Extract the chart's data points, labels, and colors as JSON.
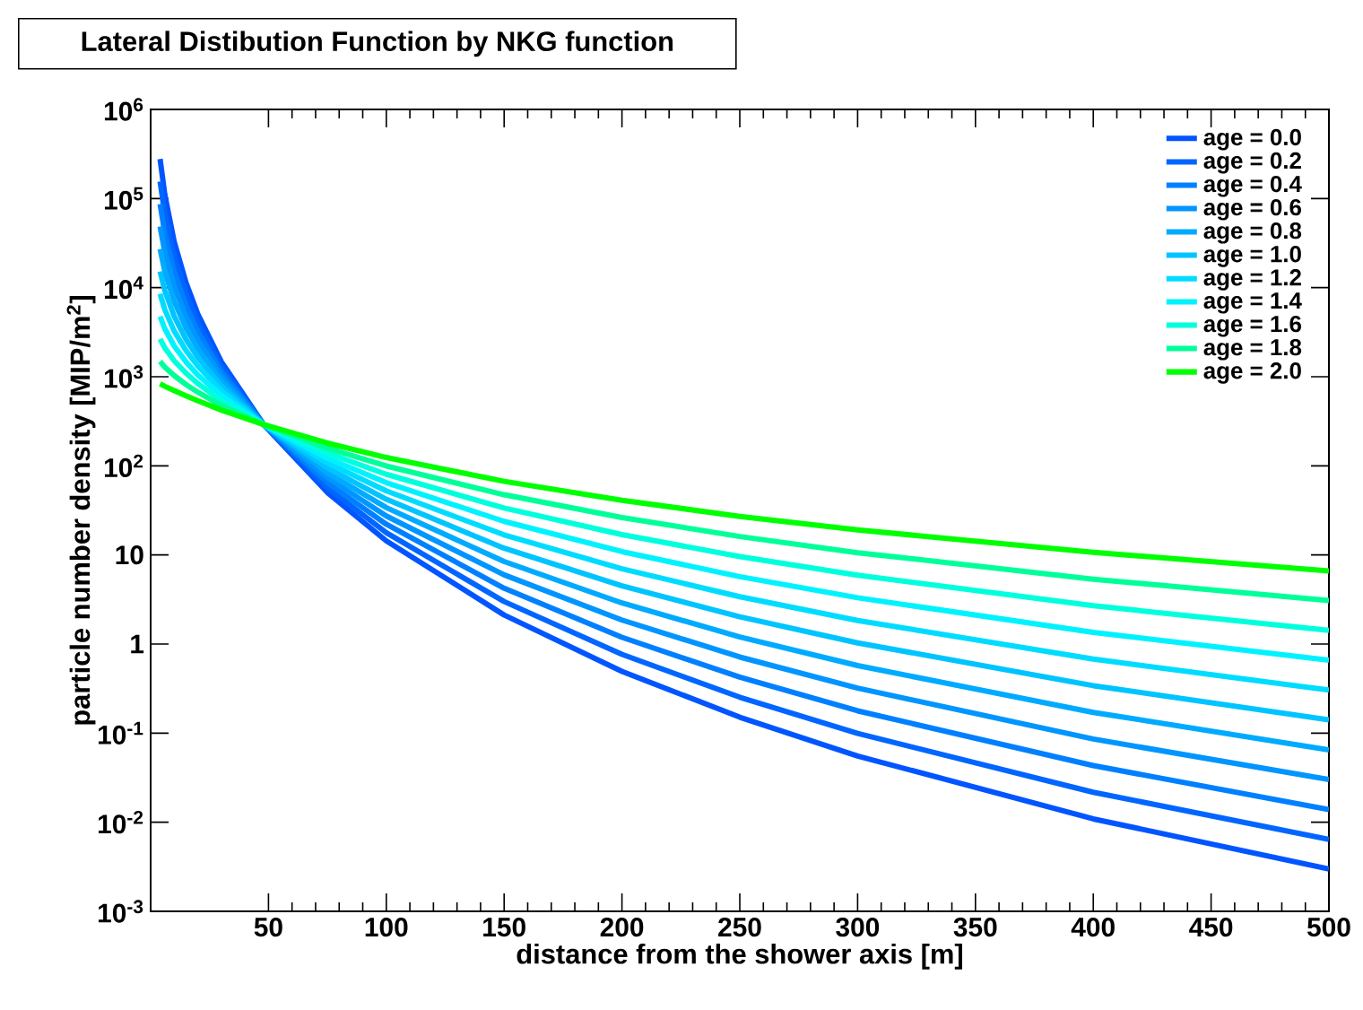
{
  "chart_data": {
    "type": "line",
    "title": "Lateral Distibution Function by NKG function",
    "xlabel": "distance from the shower axis [m]",
    "ylabel": "particle number density [MIP/m$^{2}$]",
    "x": [
      4,
      6,
      10,
      15,
      20,
      30,
      48,
      75,
      100,
      150,
      200,
      250,
      300,
      400,
      500
    ],
    "series": [
      {
        "name": "age = 0.0",
        "color": "#0055ff",
        "values": [
          278000,
          111000,
          32600,
          11400,
          5070,
          1470,
          290,
          50.2,
          14.4,
          2.12,
          0.493,
          0.151,
          0.0554,
          0.0109,
          0.00298
        ]
      },
      {
        "name": "age = 0.2",
        "color": "#0066ff",
        "values": [
          155000,
          67700,
          22200,
          8480,
          4050,
          1300,
          290,
          57.0,
          17.8,
          3.0,
          0.766,
          0.253,
          0.0994,
          0.0217,
          0.00643
        ]
      },
      {
        "name": "age = 0.4",
        "color": "#0080ff",
        "values": [
          86900,
          41200,
          15100,
          6330,
          3230,
          1140,
          290,
          64.7,
          22.1,
          4.23,
          1.19,
          0.425,
          0.178,
          0.0432,
          0.0139
        ]
      },
      {
        "name": "age = 0.6",
        "color": "#0095ff",
        "values": [
          48600,
          25100,
          10300,
          4720,
          2580,
          1010,
          290,
          73.6,
          27.4,
          5.98,
          1.86,
          0.715,
          0.32,
          0.086,
          0.0301
        ]
      },
      {
        "name": "age = 0.8",
        "color": "#00aaff",
        "values": [
          27200,
          15300,
          7010,
          3530,
          2060,
          892,
          290,
          83.6,
          34.0,
          8.44,
          2.89,
          1.2,
          0.573,
          0.171,
          0.065
        ]
      },
      {
        "name": "age = 1.0",
        "color": "#00c4ff",
        "values": [
          15200,
          9320,
          4770,
          2630,
          1650,
          788,
          290,
          94.9,
          42.2,
          11.9,
          4.49,
          2.02,
          1.03,
          0.341,
          0.141
        ]
      },
      {
        "name": "age = 1.2",
        "color": "#00dcff",
        "values": [
          8500,
          5680,
          3250,
          1970,
          1320,
          696,
          290,
          108,
          52.3,
          16.8,
          6.99,
          3.4,
          1.84,
          0.678,
          0.304
        ]
      },
      {
        "name": "age = 1.4",
        "color": "#00f2ff",
        "values": [
          4750,
          3460,
          2210,
          1470,
          1050,
          614,
          290,
          122,
          64.8,
          23.8,
          10.9,
          5.71,
          3.31,
          1.35,
          0.657
        ]
      },
      {
        "name": "age = 1.6",
        "color": "#00ffdd",
        "values": [
          2660,
          2110,
          1510,
          1100,
          841,
          543,
          290,
          139,
          80.4,
          33.6,
          16.9,
          9.6,
          5.93,
          2.69,
          1.42
        ]
      },
      {
        "name": "age = 1.8",
        "color": "#00ff99",
        "values": [
          1490,
          1280,
          1030,
          818,
          672,
          479,
          290,
          158,
          99.7,
          47.4,
          26.3,
          16.1,
          10.6,
          5.35,
          3.07
        ]
      },
      {
        "name": "age = 2.0",
        "color": "#00ff00",
        "values": [
          832,
          782,
          700,
          611,
          537,
          423,
          290,
          180,
          124,
          67.0,
          41.0,
          27.1,
          19.1,
          10.7,
          6.63
        ]
      }
    ],
    "xlim": [
      0,
      500
    ],
    "xticks": [
      50,
      100,
      150,
      200,
      250,
      300,
      350,
      400,
      450,
      500
    ],
    "ylim": [
      0.001,
      1000000
    ],
    "yticks": [
      {
        "value": 0.001,
        "label": "10$^{-3}$"
      },
      {
        "value": 0.01,
        "label": "10$^{-2}$"
      },
      {
        "value": 0.1,
        "label": "10$^{-1}$"
      },
      1,
      10,
      {
        "value": 100,
        "label": "10$^{2}$"
      },
      {
        "value": 1000,
        "label": "10$^{3}$"
      },
      {
        "value": 10000,
        "label": "10$^{4}$"
      },
      {
        "value": 100000,
        "label": "10$^{5}$"
      },
      {
        "value": 1000000,
        "label": "10$^{6}$"
      }
    ],
    "log": "y",
    "grid": false,
    "legend": "top right",
    "marker": "none",
    "line_style": "solid"
  }
}
